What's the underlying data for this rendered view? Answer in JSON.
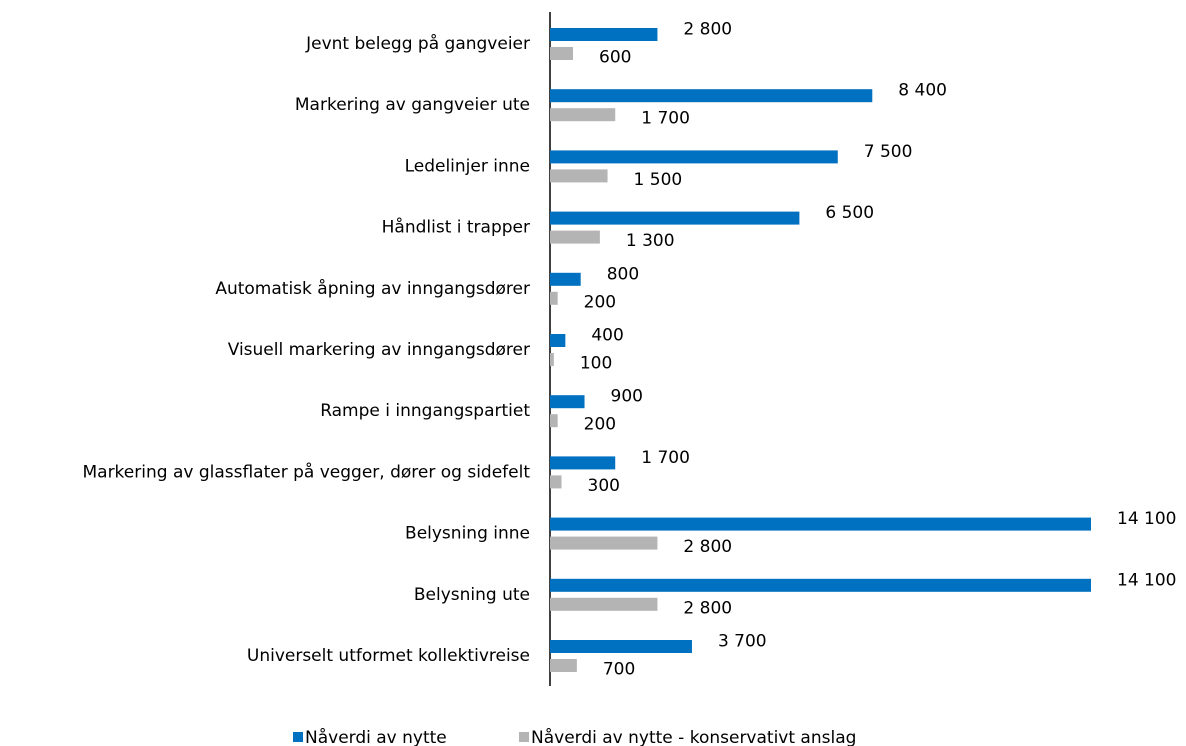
{
  "chart_data": {
    "type": "bar",
    "orientation": "horizontal",
    "categories": [
      "Jevnt belegg på gangveier",
      "Markering av gangveier ute",
      "Ledelinjer inne",
      "Håndlist i trapper",
      "Automatisk åpning av inngangsdører",
      "Visuell markering av inngangsdører",
      "Rampe i inngangspartiet",
      "Markering av glassflater på vegger, dører og sidefelt",
      "Belysning inne",
      "Belysning ute",
      "Universelt utformet kollektivreise"
    ],
    "series": [
      {
        "name": "Nåverdi av nytte",
        "color": "#0070c0",
        "values": [
          2800,
          8400,
          7500,
          6500,
          800,
          400,
          900,
          1700,
          14100,
          14100,
          3700
        ],
        "value_labels": [
          "2 800",
          "8 400",
          "7 500",
          "6 500",
          "800",
          "400",
          "900",
          "1 700",
          "14 100",
          "14 100",
          "3 700"
        ]
      },
      {
        "name": "Nåverdi av nytte - konservativt anslag",
        "color": "#b4b4b4",
        "values": [
          600,
          1700,
          1500,
          1300,
          200,
          100,
          200,
          300,
          2800,
          2800,
          700
        ],
        "value_labels": [
          "600",
          "1 700",
          "1 500",
          "1 300",
          "200",
          "100",
          "200",
          "300",
          "2 800",
          "2 800",
          "700"
        ]
      }
    ],
    "xlim": [
      0,
      14100
    ],
    "legend": "bottom"
  }
}
